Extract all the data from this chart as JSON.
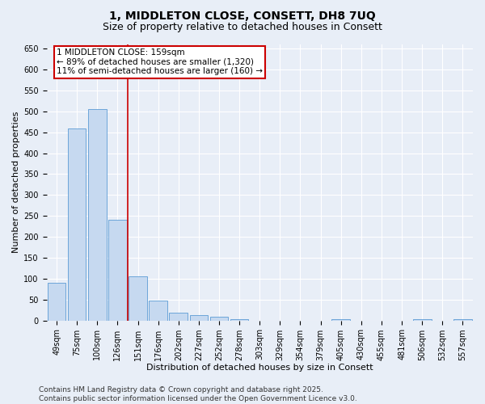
{
  "title": "1, MIDDLETON CLOSE, CONSETT, DH8 7UQ",
  "subtitle": "Size of property relative to detached houses in Consett",
  "xlabel": "Distribution of detached houses by size in Consett",
  "ylabel": "Number of detached properties",
  "categories": [
    "49sqm",
    "75sqm",
    "100sqm",
    "126sqm",
    "151sqm",
    "176sqm",
    "202sqm",
    "227sqm",
    "252sqm",
    "278sqm",
    "303sqm",
    "329sqm",
    "354sqm",
    "379sqm",
    "405sqm",
    "430sqm",
    "455sqm",
    "481sqm",
    "506sqm",
    "532sqm",
    "557sqm"
  ],
  "values": [
    90,
    460,
    505,
    240,
    105,
    48,
    18,
    13,
    8,
    3,
    0,
    0,
    0,
    0,
    3,
    0,
    0,
    0,
    3,
    0,
    3
  ],
  "bar_color": "#c6d9f0",
  "bar_edge_color": "#5b9bd5",
  "ref_line_index": 4,
  "ref_line_color": "#cc0000",
  "annotation_line1": "1 MIDDLETON CLOSE: 159sqm",
  "annotation_line2": "← 89% of detached houses are smaller (1,320)",
  "annotation_line3": "11% of semi-detached houses are larger (160) →",
  "annotation_box_color": "#cc0000",
  "ylim": [
    0,
    660
  ],
  "yticks": [
    0,
    50,
    100,
    150,
    200,
    250,
    300,
    350,
    400,
    450,
    500,
    550,
    600,
    650
  ],
  "footer": "Contains HM Land Registry data © Crown copyright and database right 2025.\nContains public sector information licensed under the Open Government Licence v3.0.",
  "background_color": "#e8eef7",
  "plot_bg_color": "#e8eef7",
  "grid_color": "#ffffff",
  "title_fontsize": 10,
  "subtitle_fontsize": 9,
  "axis_label_fontsize": 8,
  "tick_fontsize": 7,
  "annotation_fontsize": 7.5,
  "footer_fontsize": 6.5
}
